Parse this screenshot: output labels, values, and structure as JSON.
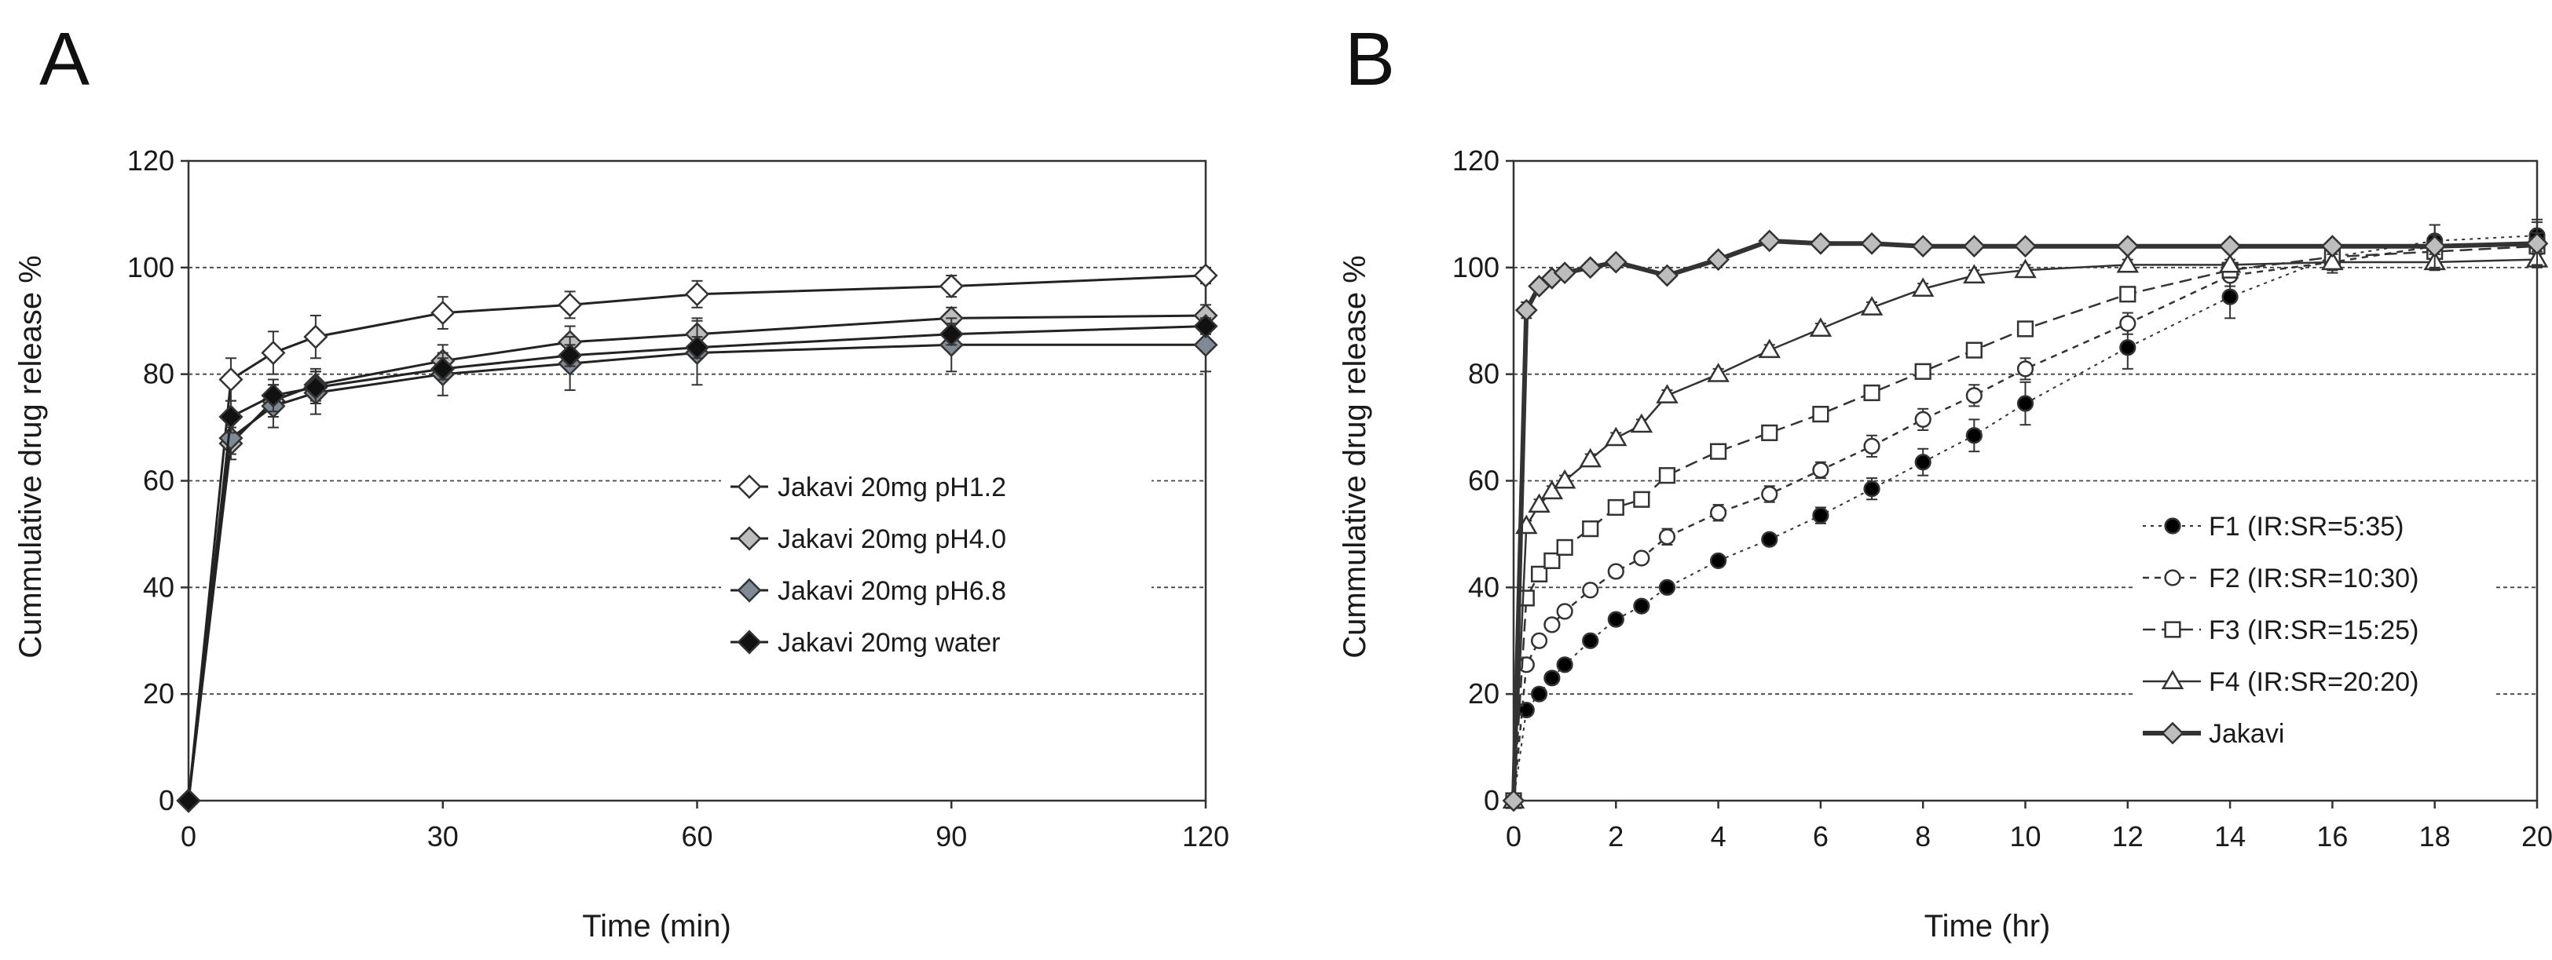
{
  "chart_data": [
    {
      "panel_label": "A",
      "type": "line",
      "xlabel": "Time (min)",
      "ylabel": "Cummulative drug release %",
      "xlim": [
        0,
        120
      ],
      "ylim": [
        0,
        120
      ],
      "xticks": [
        0,
        30,
        60,
        90,
        120
      ],
      "yticks": [
        0,
        20,
        40,
        60,
        80,
        100,
        120
      ],
      "gridlines": "horizontal dashed",
      "x": [
        0,
        5,
        10,
        15,
        30,
        45,
        60,
        90,
        120
      ],
      "series": [
        {
          "name": "Jakavi 20mg pH1.2",
          "marker": "diamond",
          "fill": "#ffffff",
          "values": [
            0,
            79,
            84,
            87,
            91.5,
            93,
            95,
            96.5,
            98.5
          ],
          "errors": [
            0,
            4,
            4,
            4,
            3,
            2.5,
            2.5,
            2,
            1.5
          ]
        },
        {
          "name": "Jakavi 20mg pH4.0",
          "marker": "diamond",
          "fill": "#bdbdbd",
          "values": [
            0,
            67,
            75,
            78,
            82.5,
            86,
            87.5,
            90.5,
            91
          ],
          "errors": [
            0,
            3,
            3,
            3,
            3,
            3,
            3,
            2,
            2
          ]
        },
        {
          "name": "Jakavi 20mg pH6.8",
          "marker": "diamond",
          "fill": "#7f8a96",
          "values": [
            0,
            68,
            74,
            76.5,
            80,
            82,
            84,
            85.5,
            85.5
          ],
          "errors": [
            0,
            3,
            4,
            4,
            4,
            5,
            6,
            5,
            5
          ]
        },
        {
          "name": "Jakavi 20mg water",
          "marker": "diamond",
          "fill": "#111111",
          "values": [
            0,
            72,
            76,
            77.5,
            81,
            83.5,
            85,
            87.5,
            89
          ],
          "errors": [
            0,
            3,
            3,
            3,
            2,
            2,
            2,
            2,
            1.5
          ]
        }
      ]
    },
    {
      "panel_label": "B",
      "type": "line",
      "xlabel": "Time (hr)",
      "ylabel": "Cummulative drug release %",
      "xlim": [
        0,
        20
      ],
      "ylim": [
        0,
        120
      ],
      "xticks": [
        0,
        2,
        4,
        6,
        8,
        10,
        12,
        14,
        16,
        18,
        20
      ],
      "yticks": [
        0,
        20,
        40,
        60,
        80,
        100,
        120
      ],
      "gridlines": "horizontal dashed",
      "series": [
        {
          "name": "F1 (IR:SR=5:35)",
          "marker": "circle",
          "fill": "#000000",
          "line": "dotted",
          "x": [
            0,
            0.25,
            0.5,
            0.75,
            1,
            1.5,
            2,
            2.5,
            3,
            4,
            5,
            6,
            7,
            8,
            9,
            10,
            12,
            14,
            16,
            18,
            20
          ],
          "values": [
            0,
            17,
            20,
            23,
            25.5,
            30,
            34,
            36.5,
            40,
            45,
            49,
            53.5,
            58.5,
            63.5,
            68.5,
            74.5,
            85,
            94.5,
            102,
            105,
            106
          ],
          "errors": [
            0,
            1,
            1,
            1,
            1,
            1,
            1,
            1,
            1,
            1,
            1,
            1.5,
            2,
            2.5,
            3,
            4,
            4,
            4,
            2,
            3,
            3
          ]
        },
        {
          "name": "F2 (IR:SR=10:30)",
          "marker": "circle",
          "fill": "#ffffff",
          "line": "short-dash",
          "x": [
            0,
            0.25,
            0.5,
            0.75,
            1,
            1.5,
            2,
            2.5,
            3,
            4,
            5,
            6,
            7,
            8,
            9,
            10,
            12,
            14,
            16,
            18,
            20
          ],
          "values": [
            0,
            25.5,
            30,
            33,
            35.5,
            39.5,
            43,
            45.5,
            49.5,
            54,
            57.5,
            62,
            66.5,
            71.5,
            76,
            81,
            89.5,
            98.5,
            101,
            104,
            104.5
          ],
          "errors": [
            0,
            1,
            1,
            1,
            1,
            1,
            1,
            1,
            1.5,
            1.5,
            1.5,
            1.5,
            2,
            2,
            2,
            2,
            2,
            2,
            2,
            2,
            2
          ]
        },
        {
          "name": "F3 (IR:SR=15:25)",
          "marker": "square",
          "fill": "#ffffff",
          "line": "dash",
          "x": [
            0,
            0.25,
            0.5,
            0.75,
            1,
            1.5,
            2,
            2.5,
            3,
            4,
            5,
            6,
            7,
            8,
            9,
            10,
            12,
            14,
            16,
            18,
            20
          ],
          "values": [
            0,
            38,
            42.5,
            45,
            47.5,
            51,
            55,
            56.5,
            61,
            65.5,
            69,
            72.5,
            76.5,
            80.5,
            84.5,
            88.5,
            95,
            99.5,
            102,
            103,
            104
          ],
          "errors": [
            0,
            1,
            1,
            1,
            1,
            1,
            1,
            1,
            1,
            1,
            1,
            1,
            1,
            1,
            1,
            1,
            1,
            1,
            1,
            1,
            1
          ]
        },
        {
          "name": "F4 (IR:SR=20:20)",
          "marker": "triangle",
          "fill": "#ffffff",
          "line": "solid-thin",
          "x": [
            0,
            0.25,
            0.5,
            0.75,
            1,
            1.5,
            2,
            2.5,
            3,
            4,
            5,
            6,
            7,
            8,
            9,
            10,
            12,
            14,
            16,
            18,
            20
          ],
          "values": [
            0,
            51.5,
            55.5,
            58,
            60,
            64,
            68,
            70.5,
            76,
            80,
            84.5,
            88.5,
            92.5,
            96,
            98.5,
            99.5,
            100.5,
            100.5,
            101,
            101,
            101.5
          ],
          "errors": [
            0,
            1,
            1,
            1,
            1,
            1,
            1,
            1,
            1,
            1,
            1,
            1,
            1,
            1,
            1,
            1,
            1,
            1,
            1.5,
            1.5,
            1.5
          ]
        },
        {
          "name": "Jakavi",
          "marker": "diamond",
          "fill": "#bdbdbd",
          "line": "solid-thick",
          "x": [
            0,
            0.25,
            0.5,
            0.75,
            1,
            1.5,
            2,
            3,
            4,
            5,
            6,
            7,
            8,
            9,
            10,
            12,
            14,
            16,
            18,
            20
          ],
          "values": [
            0,
            92,
            96.5,
            98,
            99,
            100,
            101,
            98.5,
            101.5,
            105,
            104.5,
            104.5,
            104,
            104,
            104,
            104,
            104,
            104,
            104,
            104.5
          ],
          "errors": [
            0,
            1.5,
            1,
            1,
            1,
            1,
            1,
            1,
            1,
            1,
            1,
            1,
            1,
            1,
            1,
            1,
            1,
            1,
            4,
            4
          ]
        }
      ]
    }
  ]
}
